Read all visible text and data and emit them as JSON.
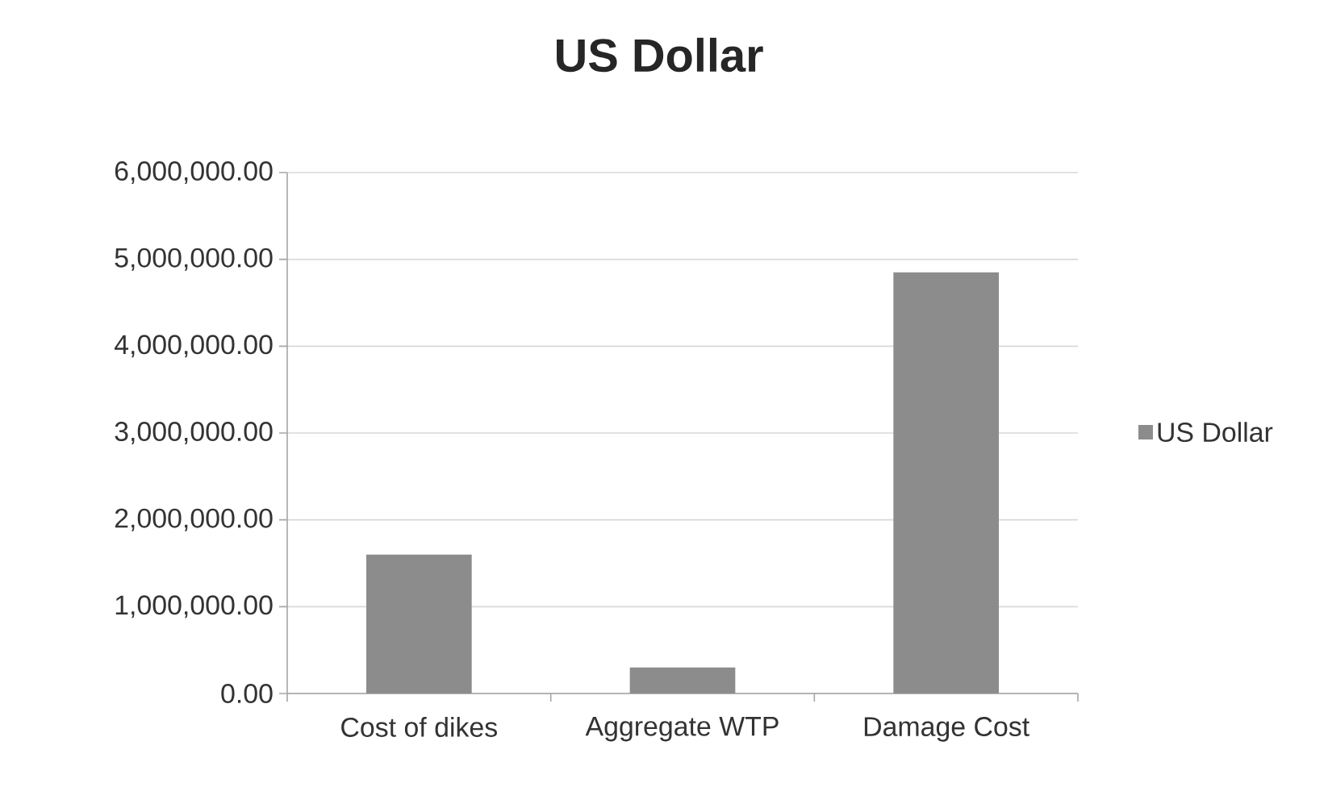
{
  "chart_data": {
    "type": "bar",
    "title": "US Dollar",
    "categories": [
      "Cost of dikes",
      "Aggregate WTP",
      "Damage Cost"
    ],
    "series": [
      {
        "name": "US Dollar",
        "color": "#8c8c8c",
        "values": [
          1600000,
          300000,
          4850000
        ]
      }
    ],
    "ylim": [
      0,
      6000000
    ],
    "yticks": [
      {
        "value": 0,
        "label": "0.00"
      },
      {
        "value": 1000000,
        "label": "1,000,000.00"
      },
      {
        "value": 2000000,
        "label": "2,000,000.00"
      },
      {
        "value": 3000000,
        "label": "3,000,000.00"
      },
      {
        "value": 4000000,
        "label": "4,000,000.00"
      },
      {
        "value": 5000000,
        "label": "5,000,000.00"
      },
      {
        "value": 6000000,
        "label": "6,000,000.00"
      }
    ],
    "grid": "y",
    "legend": "right"
  }
}
